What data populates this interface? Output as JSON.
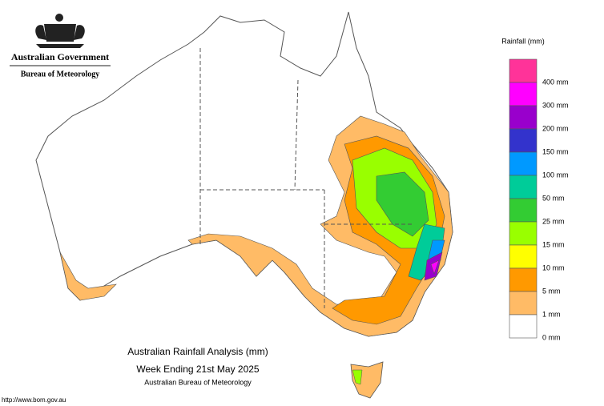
{
  "header": {
    "government": "Australian Government",
    "agency": "Bureau of Meteorology"
  },
  "legend": {
    "title": "Rainfall (mm)",
    "items": [
      {
        "label": "400 mm",
        "color": "#ff3399"
      },
      {
        "label": "300 mm",
        "color": "#ff00ff"
      },
      {
        "label": "200 mm",
        "color": "#9900cc"
      },
      {
        "label": "150 mm",
        "color": "#3333cc"
      },
      {
        "label": "100 mm",
        "color": "#0099ff"
      },
      {
        "label": "50 mm",
        "color": "#00cc99"
      },
      {
        "label": "25 mm",
        "color": "#33cc33"
      },
      {
        "label": "15 mm",
        "color": "#99ff00"
      },
      {
        "label": "10 mm",
        "color": "#ffff00"
      },
      {
        "label": "5 mm",
        "color": "#ff9900"
      },
      {
        "label": "1 mm",
        "color": "#ffbb66"
      },
      {
        "label": "0 mm",
        "color": "#ffffff"
      }
    ]
  },
  "caption": {
    "title": "Australian Rainfall Analysis (mm)",
    "period": "Week Ending 21st May 2025",
    "source": "Australian Bureau of Meteorology"
  },
  "footer": {
    "url": "http://www.bom.gov.au"
  }
}
